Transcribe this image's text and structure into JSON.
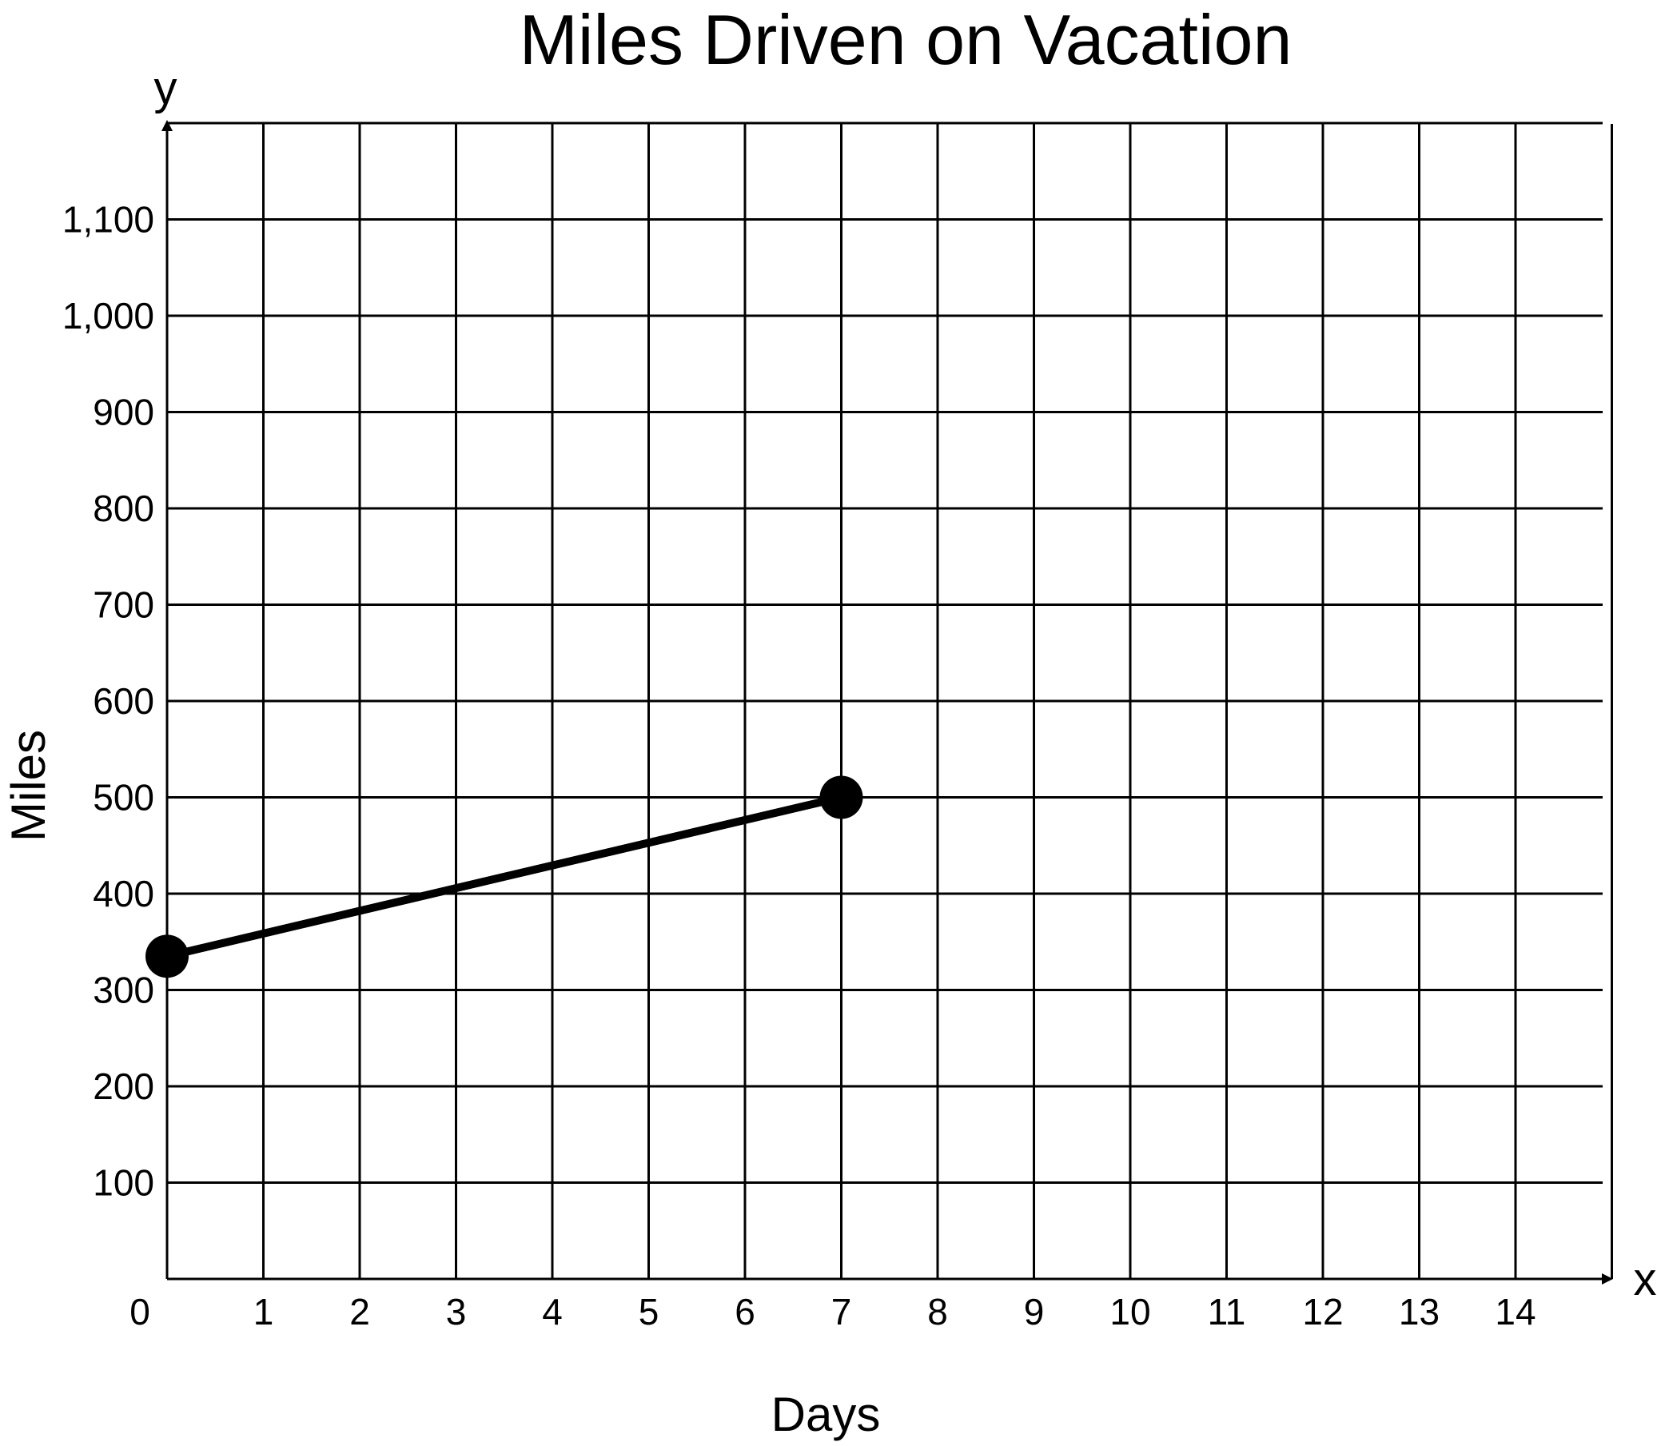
{
  "chart_data": {
    "type": "line",
    "title": "Miles Driven on Vacation",
    "xlabel": "Days",
    "ylabel": "Miles",
    "x_axis_letter": "x",
    "y_axis_letter": "y",
    "origin_label": "0",
    "xlim": [
      0,
      15
    ],
    "ylim": [
      0,
      1200
    ],
    "grid": true,
    "x_ticks": [
      1,
      2,
      3,
      4,
      5,
      6,
      7,
      8,
      9,
      10,
      11,
      12,
      13,
      14
    ],
    "x_tick_labels": [
      "1",
      "2",
      "3",
      "4",
      "5",
      "6",
      "7",
      "8",
      "9",
      "10",
      "11",
      "12",
      "13",
      "14"
    ],
    "y_ticks": [
      100,
      200,
      300,
      400,
      500,
      600,
      700,
      800,
      900,
      1000,
      1100
    ],
    "y_tick_labels": [
      "100",
      "200",
      "300",
      "400",
      "500",
      "600",
      "700",
      "800",
      "900",
      "1,000",
      "1,100"
    ],
    "series": [
      {
        "points": [
          {
            "x": 0,
            "y": 335
          },
          {
            "x": 7,
            "y": 500
          }
        ]
      }
    ],
    "colors": {
      "line": "#000000",
      "grid": "#000000",
      "background": "#ffffff"
    }
  }
}
